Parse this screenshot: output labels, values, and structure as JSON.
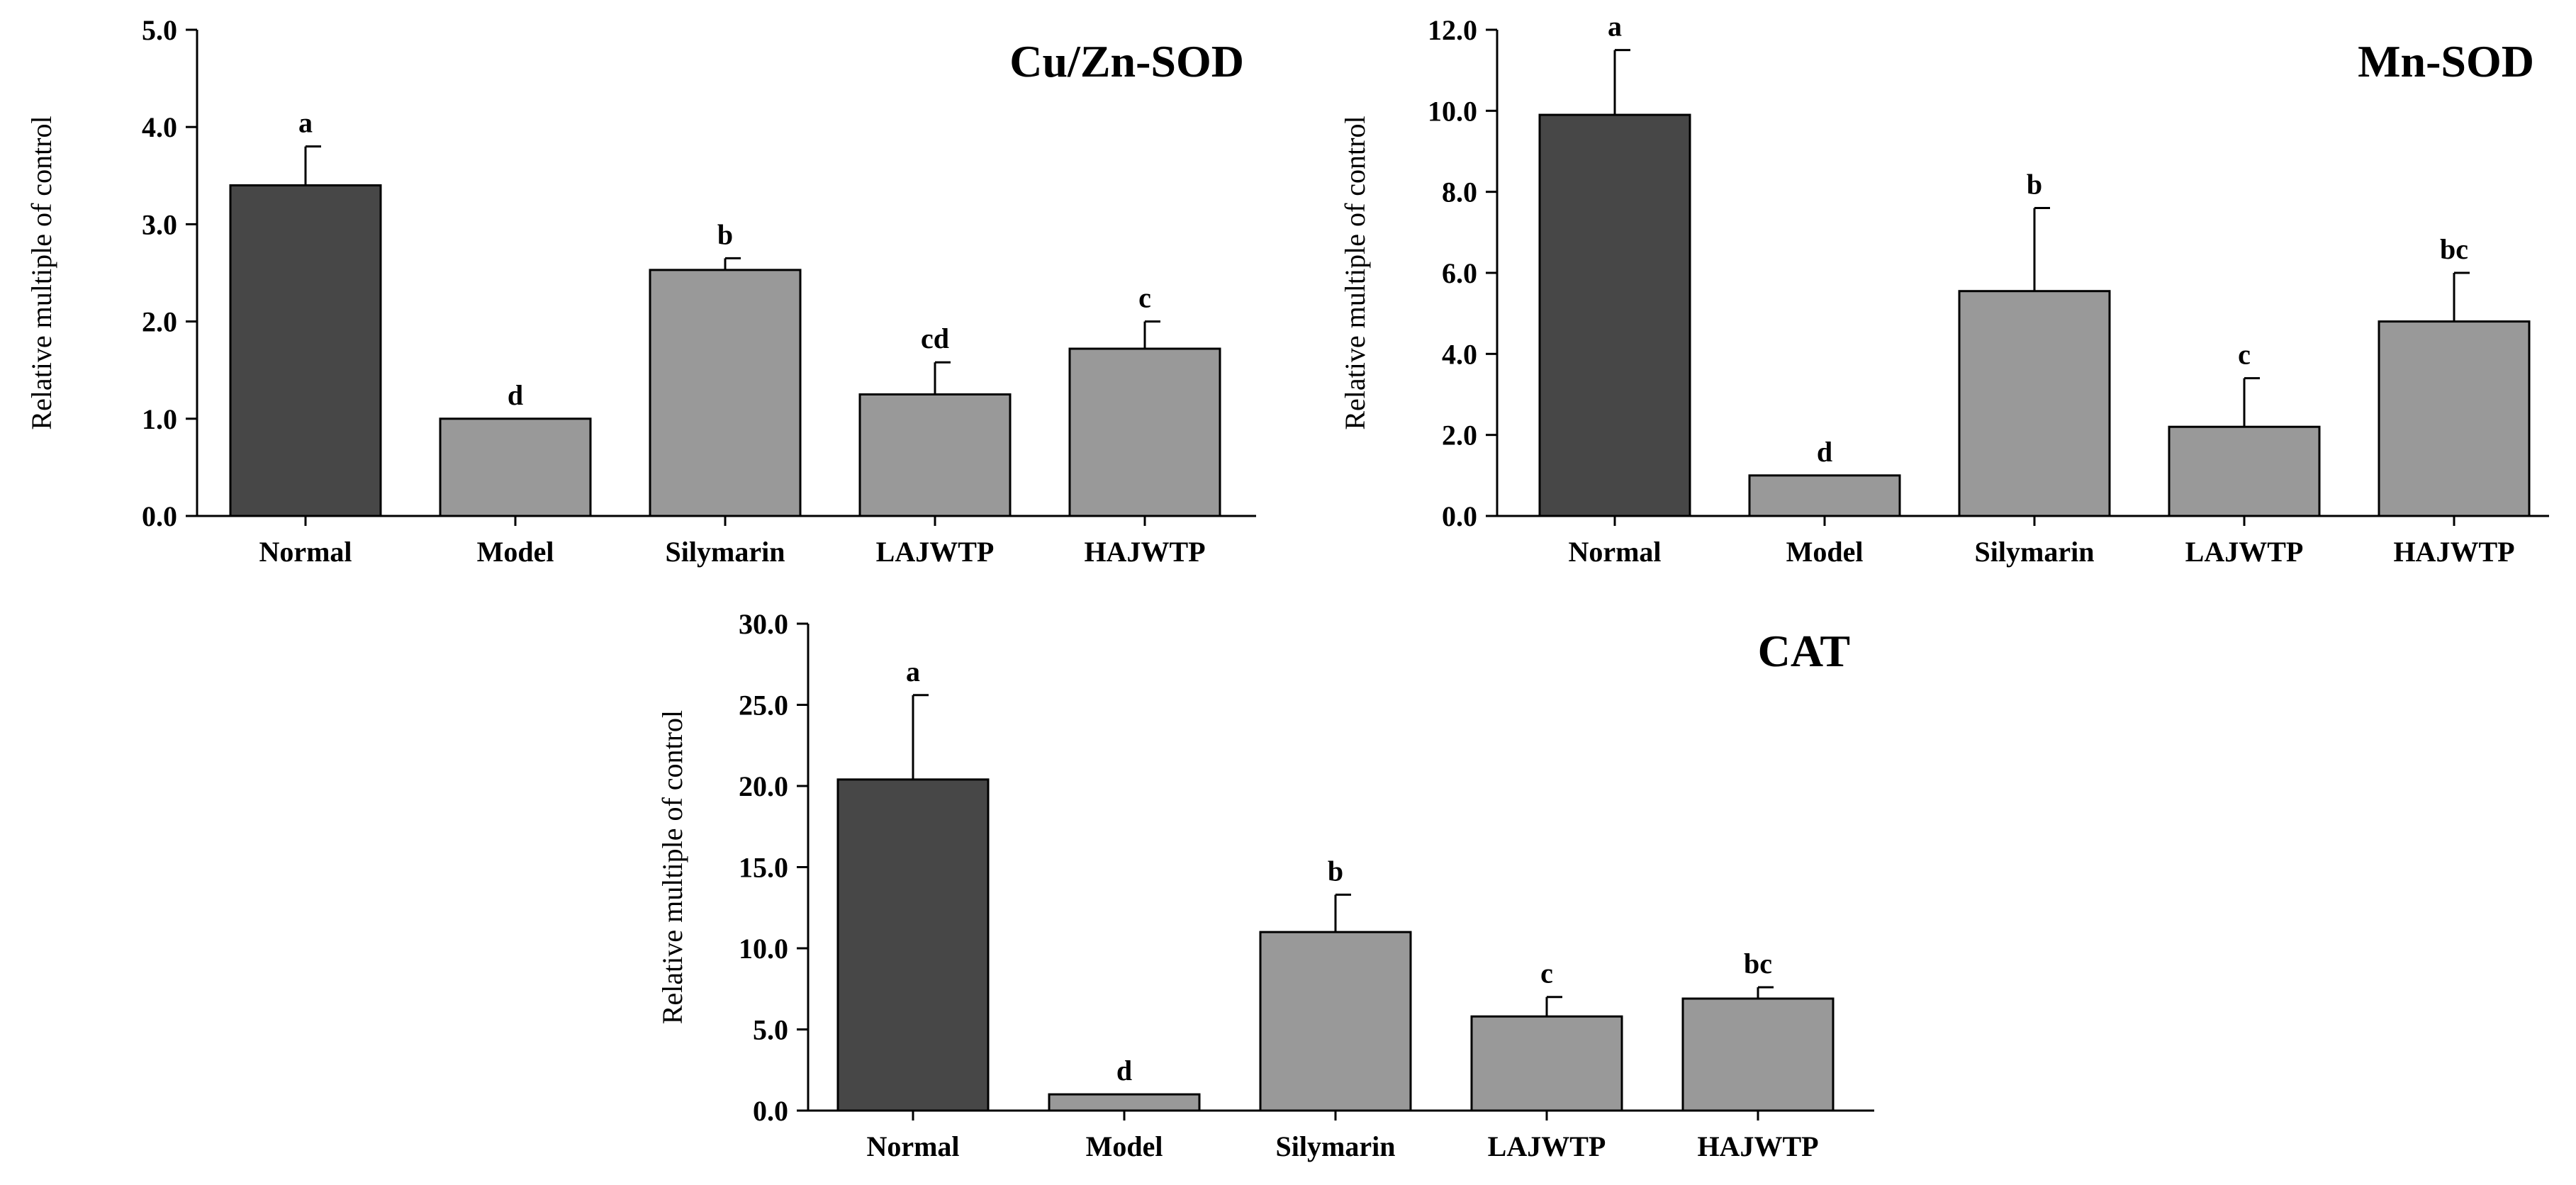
{
  "colors": {
    "control_bar": "#474747",
    "treatment_bar": "#999999",
    "axis": "#000000"
  },
  "chart_data": [
    {
      "type": "bar",
      "title": "Cu/Zn-SOD",
      "xlabel": "",
      "ylabel": "Relative multiple of control",
      "ylim": [
        0,
        5
      ],
      "yticks": [
        0,
        1,
        2,
        3,
        4,
        5
      ],
      "ytick_labels": [
        "0.0",
        "1.0",
        "2.0",
        "3.0",
        "4.0",
        "5.0"
      ],
      "categories": [
        "Normal",
        "Model",
        "Silymarin",
        "LAJWTP",
        "HAJWTP"
      ],
      "values": [
        3.4,
        1.0,
        2.53,
        1.25,
        1.72
      ],
      "errors": [
        0.4,
        0.0,
        0.12,
        0.33,
        0.28
      ],
      "significance": [
        "a",
        "d",
        "b",
        "cd",
        "c"
      ],
      "bar_colors": [
        "control_bar",
        "treatment_bar",
        "treatment_bar",
        "treatment_bar",
        "treatment_bar"
      ]
    },
    {
      "type": "bar",
      "title": "Mn-SOD",
      "xlabel": "",
      "ylabel": "Relative multiple of control",
      "ylim": [
        0,
        12
      ],
      "yticks": [
        0,
        2,
        4,
        6,
        8,
        10,
        12
      ],
      "ytick_labels": [
        "0.0",
        "2.0",
        "4.0",
        "6.0",
        "8.0",
        "10.0",
        "12.0"
      ],
      "categories": [
        "Normal",
        "Model",
        "Silymarin",
        "LAJWTP",
        "HAJWTP"
      ],
      "values": [
        9.9,
        1.0,
        5.55,
        2.2,
        4.8
      ],
      "errors": [
        1.6,
        0.0,
        2.05,
        1.2,
        1.2
      ],
      "significance": [
        "a",
        "d",
        "b",
        "c",
        "bc"
      ],
      "bar_colors": [
        "control_bar",
        "treatment_bar",
        "treatment_bar",
        "treatment_bar",
        "treatment_bar"
      ]
    },
    {
      "type": "bar",
      "title": "CAT",
      "xlabel": "",
      "ylabel": "Relative multiple of control",
      "ylim": [
        0,
        30
      ],
      "yticks": [
        0,
        5,
        10,
        15,
        20,
        25,
        30
      ],
      "ytick_labels": [
        "0.0",
        "5.0",
        "10.0",
        "15.0",
        "20.0",
        "25.0",
        "30.0"
      ],
      "categories": [
        "Normal",
        "Model",
        "Silymarin",
        "LAJWTP",
        "HAJWTP"
      ],
      "values": [
        20.4,
        1.0,
        11.0,
        5.8,
        6.9
      ],
      "errors": [
        5.2,
        0.0,
        2.3,
        1.2,
        0.7
      ],
      "significance": [
        "a",
        "d",
        "b",
        "c",
        "bc"
      ],
      "bar_colors": [
        "control_bar",
        "treatment_bar",
        "treatment_bar",
        "treatment_bar",
        "treatment_bar"
      ]
    }
  ]
}
